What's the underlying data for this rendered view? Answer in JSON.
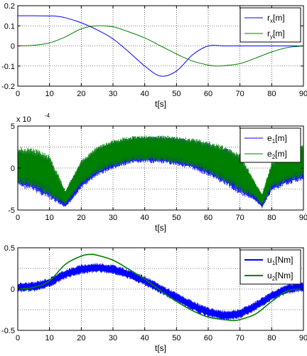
{
  "chart_data": [
    {
      "type": "line",
      "xlabel": "t[s]",
      "ylabel": "",
      "xlim": [
        0,
        90
      ],
      "ylim": [
        -0.2,
        0.2
      ],
      "xticks": [
        "0",
        "10",
        "20",
        "30",
        "40",
        "50",
        "60",
        "70",
        "80",
        "90"
      ],
      "yticks": [
        "-0.2",
        "-0.1",
        "0",
        "0.1",
        "0.2"
      ],
      "grid": "dotted",
      "legend_position": "top-right",
      "series": [
        {
          "name": "r_x[m]",
          "label_base": "r",
          "label_sub": "x",
          "label_unit": "[m]",
          "color": "#0000ff",
          "description": "constant 0.15 until t≈12, then cosine descent to -0.15 at t≈45, rising back to 0 at t=90",
          "x": [
            0,
            5,
            10,
            12,
            15,
            20,
            25,
            30,
            35,
            40,
            45,
            50,
            55,
            60,
            65,
            70,
            75,
            80,
            85,
            90
          ],
          "y": [
            0.15,
            0.15,
            0.149,
            0.148,
            0.14,
            0.115,
            0.08,
            0.035,
            -0.03,
            -0.1,
            -0.15,
            -0.125,
            -0.045,
            0.0,
            0.0,
            0.0,
            0.0,
            0.0,
            0.0,
            0.0
          ]
        },
        {
          "name": "r_y[m]",
          "label_base": "r",
          "label_sub": "y",
          "label_unit": "[m]",
          "color": "#008000",
          "x": [
            0,
            5,
            10,
            15,
            20,
            25,
            30,
            35,
            40,
            45,
            50,
            55,
            60,
            63,
            65,
            70,
            75,
            80,
            85,
            90
          ],
          "y": [
            0.0,
            0.003,
            0.015,
            0.045,
            0.085,
            0.1,
            0.095,
            0.07,
            0.04,
            0.0,
            -0.04,
            -0.075,
            -0.095,
            -0.1,
            -0.098,
            -0.088,
            -0.06,
            -0.03,
            -0.008,
            0.0
          ]
        }
      ]
    },
    {
      "type": "line",
      "xlabel": "t[s]",
      "ylabel": "",
      "xlim": [
        0,
        90
      ],
      "ylim": [
        -5,
        5
      ],
      "y_multiplier": "x 10",
      "y_multiplier_exp": "-4",
      "xticks": [
        "0",
        "10",
        "20",
        "30",
        "40",
        "50",
        "60",
        "70",
        "80",
        "90"
      ],
      "yticks": [
        "-5",
        "0",
        "5"
      ],
      "grid": "dotted",
      "legend_position": "top-right",
      "series": [
        {
          "name": "e_1[m]",
          "label_base": "e",
          "label_sub": "1",
          "label_unit": "[m]",
          "color": "#0000ff",
          "envelope_x": [
            0,
            5,
            10,
            15,
            20,
            25,
            30,
            35,
            40,
            45,
            50,
            55,
            60,
            65,
            70,
            75,
            77,
            80,
            85,
            90
          ],
          "envelope_upper": [
            2.2,
            2.0,
            1.2,
            -2.8,
            0.8,
            2.4,
            3.2,
            3.6,
            3.8,
            3.8,
            3.7,
            3.4,
            3.0,
            2.5,
            1.5,
            -2.0,
            -3.2,
            0.5,
            1.5,
            2.5
          ],
          "envelope_lower": [
            -2.2,
            -2.8,
            -3.8,
            -4.8,
            -2.5,
            -1.0,
            -0.2,
            0.4,
            0.6,
            0.5,
            0.3,
            -0.2,
            -1.0,
            -2.0,
            -3.2,
            -4.0,
            -4.8,
            -2.8,
            -2.0,
            -1.5
          ]
        },
        {
          "name": "e_2[m]",
          "label_base": "e",
          "label_sub": "2",
          "label_unit": "[m]",
          "color": "#008000",
          "envelope_x": [
            0,
            5,
            10,
            15,
            20,
            25,
            30,
            35,
            40,
            45,
            50,
            55,
            60,
            65,
            70,
            75,
            77,
            80,
            85,
            90
          ],
          "envelope_upper": [
            2.6,
            2.4,
            1.6,
            -2.6,
            1.0,
            2.6,
            3.4,
            3.8,
            3.9,
            3.9,
            3.8,
            3.6,
            3.2,
            2.7,
            1.8,
            -1.8,
            -3.0,
            0.8,
            1.9,
            2.9
          ],
          "envelope_lower": [
            -1.9,
            -2.4,
            -3.4,
            -4.4,
            -2.0,
            -0.6,
            0.1,
            0.7,
            0.9,
            0.8,
            0.6,
            0.1,
            -0.6,
            -1.6,
            -2.8,
            -3.6,
            -4.5,
            -2.4,
            -1.6,
            -1.1
          ]
        }
      ]
    },
    {
      "type": "line",
      "xlabel": "t[s]",
      "ylabel": "",
      "xlim": [
        0,
        90
      ],
      "ylim": [
        -0.5,
        0.5
      ],
      "xticks": [
        "0",
        "10",
        "20",
        "30",
        "40",
        "50",
        "60",
        "70",
        "80",
        "90"
      ],
      "yticks": [
        "-0.5",
        "0",
        "0.5"
      ],
      "grid": "dotted",
      "legend_position": "top-right",
      "series": [
        {
          "name": "u_1[Nm]",
          "label_base": "u",
          "label_sub": "1",
          "label_unit": "[Nm]",
          "color": "#0000ff",
          "band": true,
          "x": [
            0,
            5,
            10,
            15,
            20,
            25,
            30,
            35,
            40,
            45,
            50,
            55,
            60,
            65,
            70,
            75,
            80,
            85,
            90
          ],
          "y": [
            0.02,
            0.03,
            0.08,
            0.18,
            0.24,
            0.26,
            0.24,
            0.18,
            0.1,
            0.0,
            -0.1,
            -0.2,
            -0.28,
            -0.32,
            -0.3,
            -0.2,
            -0.08,
            0.0,
            0.03
          ],
          "band_half_width": 0.06
        },
        {
          "name": "u_2[Nm]",
          "label_base": "u",
          "label_sub": "2",
          "label_unit": "[Nm]",
          "color": "#008000",
          "x": [
            0,
            5,
            10,
            15,
            20,
            23,
            25,
            30,
            35,
            40,
            45,
            50,
            55,
            60,
            65,
            68,
            70,
            75,
            80,
            85,
            90
          ],
          "y": [
            0.0,
            0.02,
            0.1,
            0.3,
            0.4,
            0.42,
            0.41,
            0.35,
            0.24,
            0.12,
            -0.02,
            -0.15,
            -0.26,
            -0.34,
            -0.37,
            -0.38,
            -0.37,
            -0.3,
            -0.15,
            -0.02,
            0.0
          ]
        }
      ]
    }
  ]
}
